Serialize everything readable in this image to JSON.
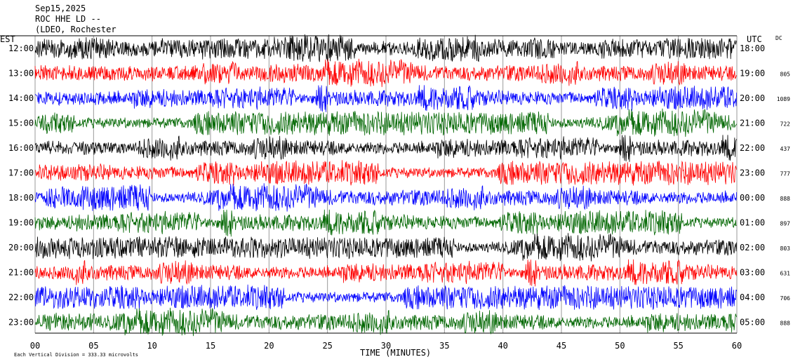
{
  "header": {
    "date": "Sep15,2025",
    "station": "ROC HHE LD --",
    "location": "(LDEO, Rochester"
  },
  "chart_data": {
    "type": "line",
    "title": "",
    "left_axis_label": "EST",
    "right_axis_label": "UTC",
    "dc_label": "DC",
    "xlabel": "TIME (MINUTES)",
    "xlim": [
      0,
      60
    ],
    "x_ticks": [
      "00",
      "05",
      "10",
      "15",
      "20",
      "25",
      "30",
      "35",
      "40",
      "45",
      "50",
      "55",
      "60"
    ],
    "footer_note": "Each Vertical Division =  333.33 microvolts",
    "colors": [
      "#000000",
      "#ff0000",
      "#0000ff",
      "#006600"
    ],
    "rows": [
      {
        "est": "12:00",
        "utc": "18:00",
        "dc": ""
      },
      {
        "est": "13:00",
        "utc": "19:00",
        "dc": "805"
      },
      {
        "est": "14:00",
        "utc": "20:00",
        "dc": "1089"
      },
      {
        "est": "15:00",
        "utc": "21:00",
        "dc": "722"
      },
      {
        "est": "16:00",
        "utc": "22:00",
        "dc": "437"
      },
      {
        "est": "17:00",
        "utc": "23:00",
        "dc": "777"
      },
      {
        "est": "18:00",
        "utc": "00:00",
        "dc": "888"
      },
      {
        "est": "19:00",
        "utc": "01:00",
        "dc": "897"
      },
      {
        "est": "20:00",
        "utc": "02:00",
        "dc": "803"
      },
      {
        "est": "21:00",
        "utc": "03:00",
        "dc": "631"
      },
      {
        "est": "22:00",
        "utc": "04:00",
        "dc": "706"
      },
      {
        "est": "23:00",
        "utc": "05:00",
        "dc": "888"
      }
    ]
  }
}
